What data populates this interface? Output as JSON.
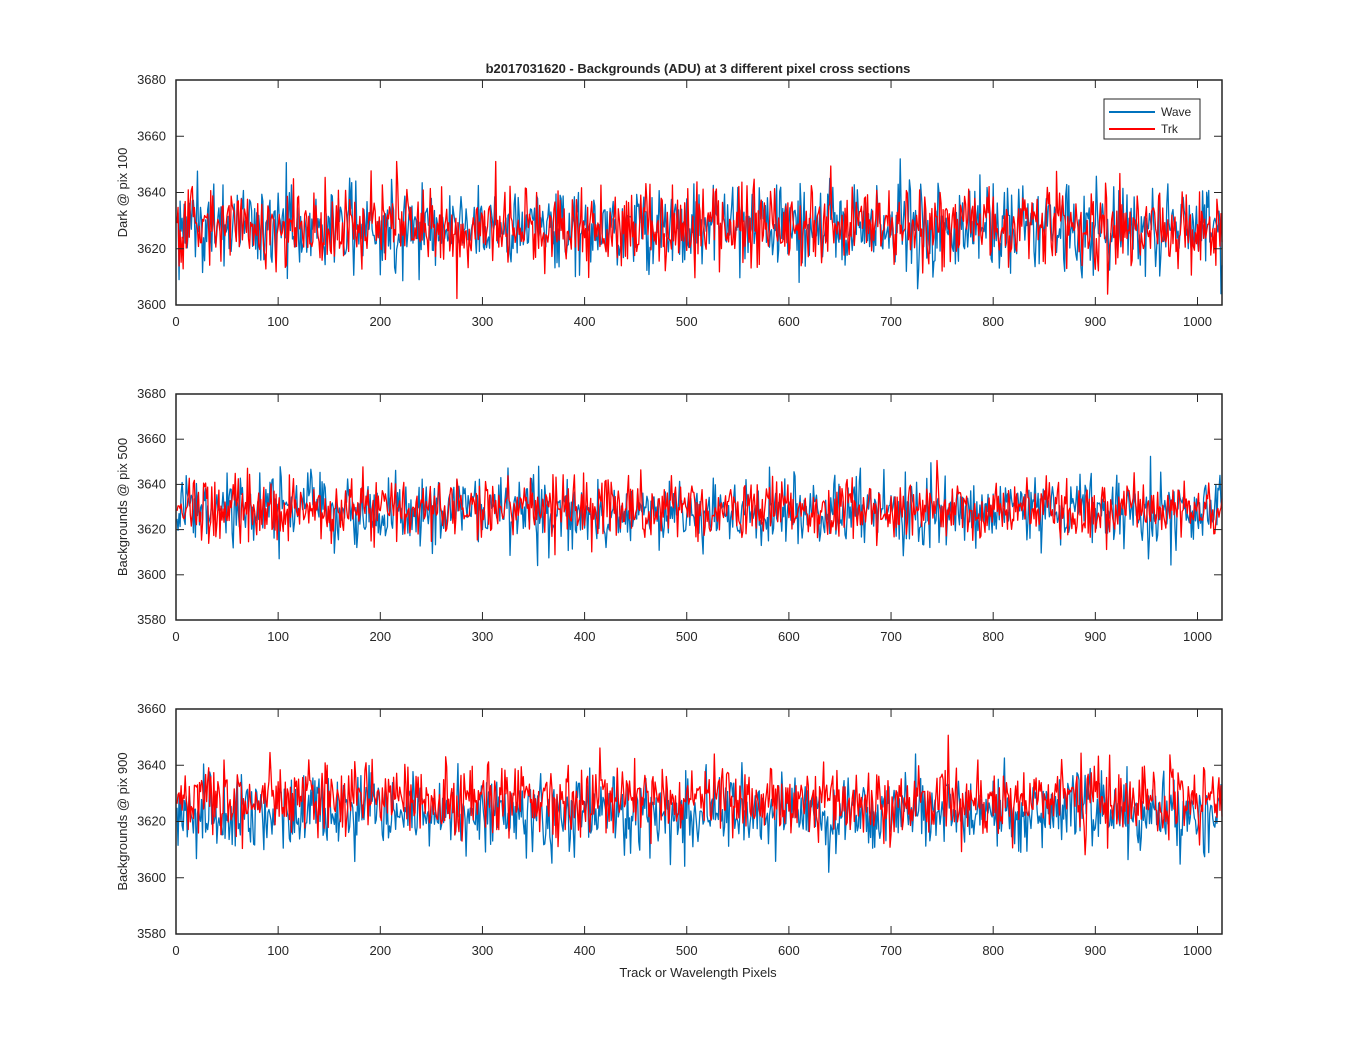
{
  "chart_data": {
    "type": "line",
    "title": "b2017031620 - Backgrounds (ADU) at 3 different pixel cross sections",
    "xlabel": "Track or Wavelength Pixels",
    "xlim": [
      0,
      1024
    ],
    "xticks": [
      0,
      100,
      200,
      300,
      400,
      500,
      600,
      700,
      800,
      900,
      1000
    ],
    "legend": {
      "placement": "top-right",
      "entries": [
        "Wave",
        "Trk"
      ]
    },
    "colors": {
      "Wave": "#0072bd",
      "Trk": "#ff0000"
    },
    "panels": [
      {
        "ylabel": "Dark @ pix 100",
        "ylim": [
          3600,
          3680
        ],
        "yticks": [
          3600,
          3620,
          3640,
          3660,
          3680
        ],
        "series": [
          {
            "name": "Wave",
            "mean": 3628,
            "noise_std": 7.5,
            "min_observed": 3604,
            "max_observed": 3661
          },
          {
            "name": "Trk",
            "mean": 3628,
            "noise_std": 7,
            "min_observed": 3601,
            "max_observed": 3651
          }
        ]
      },
      {
        "ylabel": "Backgrounds @ pix 500",
        "ylim": [
          3580,
          3680
        ],
        "yticks": [
          3580,
          3600,
          3620,
          3640,
          3660,
          3680
        ],
        "series": [
          {
            "name": "Wave",
            "mean": 3628,
            "noise_std": 7.5,
            "min_observed": 3597,
            "max_observed": 3661
          },
          {
            "name": "Trk",
            "mean": 3629,
            "noise_std": 6.5,
            "min_observed": 3604,
            "max_observed": 3659
          }
        ]
      },
      {
        "ylabel": "Backgrounds @ pix 900",
        "ylim": [
          3580,
          3660
        ],
        "yticks": [
          3580,
          3600,
          3620,
          3640,
          3660
        ],
        "series": [
          {
            "name": "Wave",
            "mean": 3623,
            "noise_std": 7,
            "min_observed": 3599,
            "max_observed": 3651
          },
          {
            "name": "Trk",
            "mean": 3628,
            "noise_std": 6.5,
            "min_observed": 3598,
            "max_observed": 3657
          }
        ]
      }
    ]
  }
}
